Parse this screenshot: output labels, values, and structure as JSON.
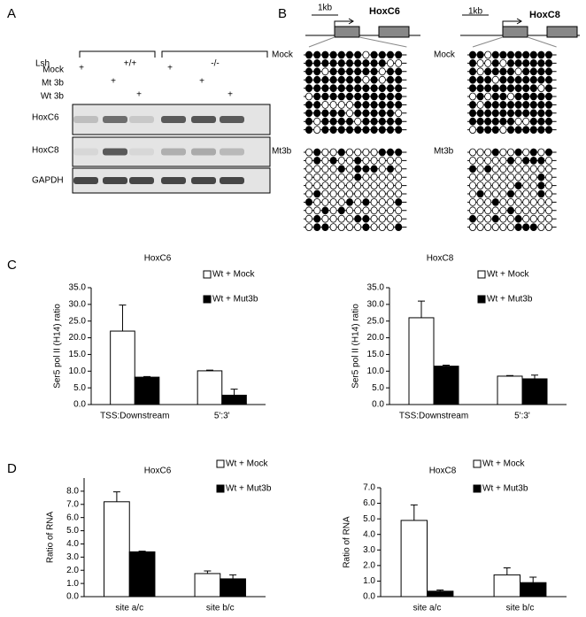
{
  "panel_labels": [
    "A",
    "B",
    "C",
    "D"
  ],
  "gel": {
    "lsh_label": "Lsh",
    "genotypes": [
      "+/+",
      "-/-"
    ],
    "treatments": [
      "Mock",
      "Mt 3b",
      "Wt 3b"
    ],
    "plus": "+",
    "blots": [
      "HoxC6",
      "HoxC8",
      "GAPDH"
    ]
  },
  "methylation": {
    "scale": "1kb",
    "genes": [
      "HoxC6",
      "HoxC8"
    ],
    "groups": [
      "Mock",
      "Mt3b"
    ]
  },
  "chart_data": [
    {
      "type": "bar",
      "title": "HoxC6",
      "ylabel": "Ser5 pol II (H14) ratio",
      "categories": [
        "TSS:Downstream",
        "5':3'"
      ],
      "series": [
        {
          "name": "Wt + Mock",
          "color": "#ffffff",
          "values": [
            22.0,
            10.1
          ],
          "errors": [
            7.8,
            0.2
          ]
        },
        {
          "name": "Wt + Mut3b",
          "color": "#000000",
          "values": [
            8.2,
            2.8
          ],
          "errors": [
            0.2,
            1.8
          ]
        }
      ],
      "ylim": [
        0,
        35
      ],
      "yticks": [
        {
          "value": 0,
          "label": "0.0"
        },
        {
          "value": 5,
          "label": "5.0"
        },
        {
          "value": 10,
          "label": "10.0"
        },
        {
          "value": 15,
          "label": "15.0"
        },
        {
          "value": 20,
          "label": "20.0"
        },
        {
          "value": 25,
          "label": "25.0"
        },
        {
          "value": 30,
          "label": "30.0"
        },
        {
          "value": 35,
          "label": "35.0"
        }
      ]
    },
    {
      "type": "bar",
      "title": "HoxC8",
      "ylabel": "Ser5 pol II (H14) ratio",
      "categories": [
        "TSS:Downstream",
        "5':3'"
      ],
      "series": [
        {
          "name": "Wt + Mock",
          "color": "#ffffff",
          "values": [
            26.0,
            8.5
          ],
          "errors": [
            5.0,
            0.2
          ]
        },
        {
          "name": "Wt + Mut3b",
          "color": "#000000",
          "values": [
            11.5,
            7.7
          ],
          "errors": [
            0.3,
            1.1
          ]
        }
      ],
      "ylim": [
        0,
        35
      ],
      "yticks": [
        {
          "value": 0,
          "label": "0.0"
        },
        {
          "value": 5,
          "label": "5.0"
        },
        {
          "value": 10,
          "label": "10.0"
        },
        {
          "value": 15,
          "label": "15.0"
        },
        {
          "value": 20,
          "label": "20.0"
        },
        {
          "value": 25,
          "label": "25.0"
        },
        {
          "value": 30,
          "label": "30.0"
        },
        {
          "value": 35,
          "label": "35.0"
        }
      ]
    },
    {
      "type": "bar",
      "title": "HoxC6",
      "ylabel": "Ratio of RNA",
      "categories": [
        "site a/c",
        "site b/c"
      ],
      "series": [
        {
          "name": "Wt + Mock",
          "color": "#ffffff",
          "values": [
            7.2,
            1.75
          ],
          "errors": [
            0.75,
            0.2
          ]
        },
        {
          "name": "Wt + Mut3b",
          "color": "#000000",
          "values": [
            3.4,
            1.35
          ],
          "errors": [
            0.05,
            0.3
          ]
        }
      ],
      "ylim": [
        0,
        9
      ],
      "yticks": [
        {
          "value": 0,
          "label": "0.0"
        },
        {
          "value": 1,
          "label": "1.0"
        },
        {
          "value": 2,
          "label": "2.0"
        },
        {
          "value": 3,
          "label": "3.0"
        },
        {
          "value": 4,
          "label": "4.0"
        },
        {
          "value": 5,
          "label": "5.0"
        },
        {
          "value": 6,
          "label": "6.0"
        },
        {
          "value": 7,
          "label": "7.0"
        },
        {
          "value": 8,
          "label": "8.0"
        }
      ]
    },
    {
      "type": "bar",
      "title": "HoxC8",
      "ylabel": "Ratio of RNA",
      "categories": [
        "site a/c",
        "site b/c"
      ],
      "series": [
        {
          "name": "Wt + Mock",
          "color": "#ffffff",
          "values": [
            4.9,
            1.4
          ],
          "errors": [
            1.0,
            0.45
          ]
        },
        {
          "name": "Wt + Mut3b",
          "color": "#000000",
          "values": [
            0.35,
            0.9
          ],
          "errors": [
            0.08,
            0.35
          ]
        }
      ],
      "ylim": [
        0,
        7
      ],
      "yticks": [
        {
          "value": 0,
          "label": "0.0"
        },
        {
          "value": 1,
          "label": "1.0"
        },
        {
          "value": 2,
          "label": "2.0"
        },
        {
          "value": 3,
          "label": "3.0"
        },
        {
          "value": 4,
          "label": "4.0"
        },
        {
          "value": 5,
          "label": "5.0"
        },
        {
          "value": 6,
          "label": "6.0"
        },
        {
          "value": 7,
          "label": "7.0"
        }
      ]
    }
  ]
}
